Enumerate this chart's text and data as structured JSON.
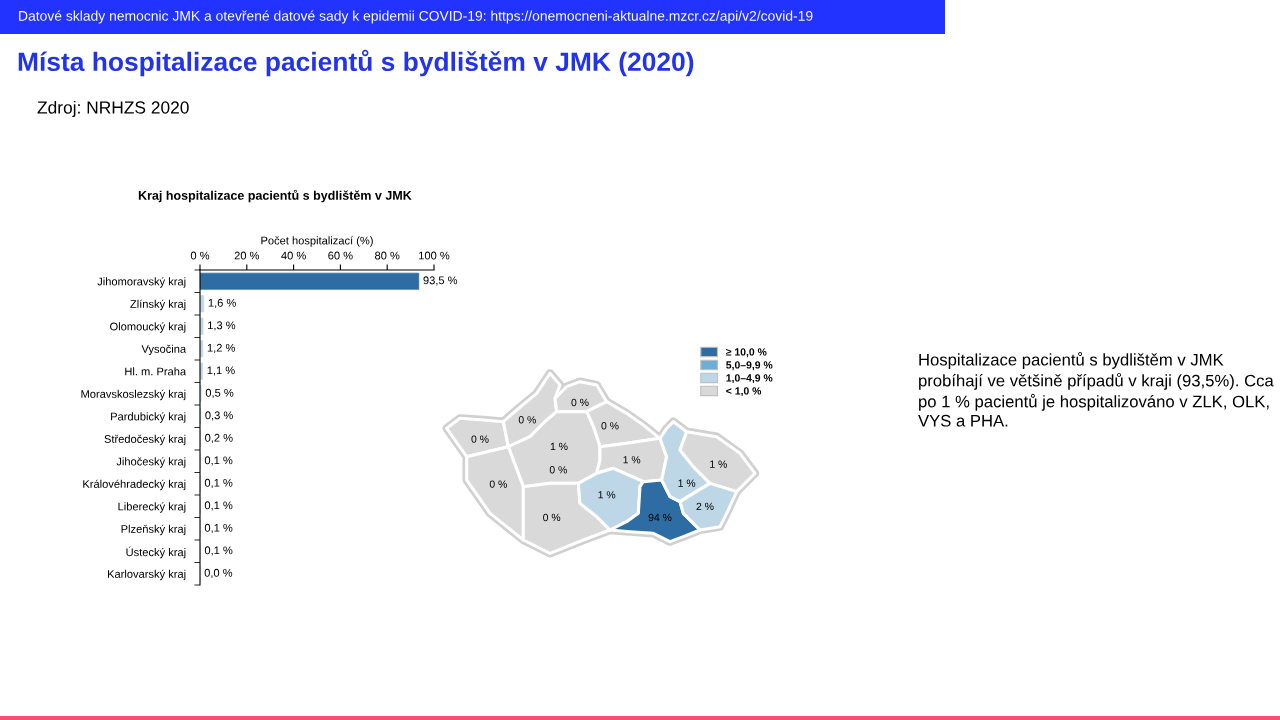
{
  "chart_data": [
    {
      "type": "other",
      "title": "Místa hospitalizace pacientů s bydlištěm v JMK (2020)",
      "annotations": [
        "Datové sklady nemocnic JMK a otevřené datové sady k epidemii COVID-19: https://onemocneni-aktualne.mzcr.cz/api/v2/covid-19",
        "Zdroj: NRHZS 2020",
        "Hospitalizace pacientů s bydlištěm v JMK probíhají ve většině případů v kraji (93,5%). Cca po 1 % pacientů je hospitalizováno v ZLK, OLK, VYS a PHA."
      ]
    },
    {
      "type": "bar",
      "orientation": "horizontal",
      "title": "Kraj hospitalizace pacientů s bydlištěm v JMK",
      "xlabel": "Počet hospitalizací (%)",
      "categories": [
        "Jihomoravský kraj",
        "Zlínský kraj",
        "Olomoucký kraj",
        "Vysočina",
        "Hl. m. Praha",
        "Moravskoslezský kraj",
        "Pardubický kraj",
        "Středočeský kraj",
        "Jihočeský kraj",
        "Královéhradecký kraj",
        "Liberecký kraj",
        "Plzeňský kraj",
        "Ústecký kraj",
        "Karlovarský kraj"
      ],
      "values": [
        93.5,
        1.6,
        1.3,
        1.2,
        1.1,
        0.5,
        0.3,
        0.2,
        0.1,
        0.1,
        0.1,
        0.1,
        0.1,
        0.0
      ],
      "colors": [
        "#2e6ca4",
        "#c3d6e6",
        "#c3d6e6",
        "#c3d6e6",
        "#c3d6e6",
        "#c3d6e6",
        "#c3d6e6",
        "#c3d6e6",
        "#c3d6e6",
        "#c3d6e6",
        "#c3d6e6",
        "#c3d6e6",
        "#c3d6e6",
        "#c3d6e6"
      ],
      "value_labels": [
        "93,5 %",
        "1,6 %",
        "1,3 %",
        "1,2 %",
        "1,1 %",
        "0,5 %",
        "0,3 %",
        "0,2 %",
        "0,1 %",
        "0,1 %",
        "0,1 %",
        "0,1 %",
        "0,1 %",
        "0,0 %"
      ],
      "xlim": [
        0,
        100
      ],
      "xticks": [
        {
          "value": 0,
          "label": "0 %"
        },
        {
          "value": 20,
          "label": "20 %"
        },
        {
          "value": 40,
          "label": "40 %"
        },
        {
          "value": 60,
          "label": "60 %"
        },
        {
          "value": 80,
          "label": "80 %"
        },
        {
          "value": 100,
          "label": "100 %"
        }
      ]
    },
    {
      "type": "other",
      "legend": "top right",
      "colors": [
        "#d9d9d9",
        "#d9d9d9",
        "#d9d9d9",
        "#d9d9d9",
        "#bdd7e7",
        "#d9d9d9",
        "#d9d9d9",
        "#d9d9d9",
        "#d9d9d9",
        "#bdd7e7",
        "#2e6ca4",
        "#bdd7e7",
        "#d9d9d9",
        "#bdd7e7"
      ],
      "series": [
        {
          "name": "≥ 10,0 %",
          "color": "#2e6ca4"
        },
        {
          "name": "5,0–9,9 %",
          "color": "#6baed6"
        },
        {
          "name": "1,0–4,9 %",
          "color": "#bdd7e7"
        },
        {
          "name": "< 1,0 %",
          "color": "#d9d9d9"
        }
      ],
      "annotations": [
        "0 %",
        "0 %",
        "0 %",
        "0 %",
        "1 %",
        "0 %",
        "0 %",
        "0 %",
        "1 %",
        "1 %",
        "94 %",
        "1 %",
        "1 %",
        "2 %"
      ]
    }
  ]
}
